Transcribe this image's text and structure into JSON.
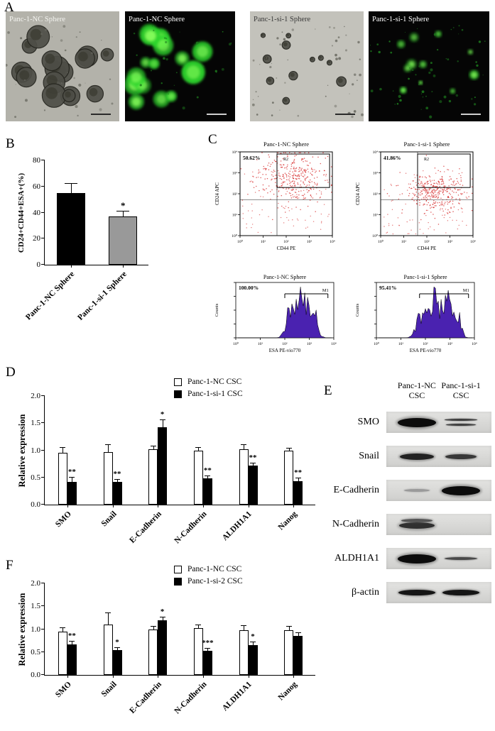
{
  "panels": {
    "a": "A",
    "b": "B",
    "c": "C",
    "d": "D",
    "e": "E",
    "f": "F"
  },
  "panel_a": {
    "images": [
      {
        "label": "Panc-1-NC Sphere",
        "mode": "brightfield",
        "density": "high"
      },
      {
        "label": "Panc-1-NC Sphere",
        "mode": "fluorescence",
        "density": "high"
      },
      {
        "label": "Panc-1-si-1 Sphere",
        "mode": "brightfield",
        "density": "low"
      },
      {
        "label": "Panc-1-si-1 Sphere",
        "mode": "fluorescence",
        "density": "low"
      }
    ]
  },
  "chart_data": [
    {
      "id": "panel_b",
      "type": "bar",
      "ylabel": "CD24+CD44+ESA+(%)",
      "ylim": [
        0,
        80
      ],
      "yticks": [
        "0",
        "20",
        "40",
        "60",
        "80"
      ],
      "categories": [
        "Panc-1-NC Sphere",
        "Panc-1-si-1 Sphere"
      ],
      "values": [
        55,
        37
      ],
      "errors": [
        7,
        4
      ],
      "significance": [
        "",
        "*"
      ],
      "bar_colors": [
        "#000000",
        "#999999"
      ],
      "grid": false
    },
    {
      "id": "panel_d",
      "type": "bar",
      "ylabel": "Relative expression",
      "ylim": [
        0,
        2
      ],
      "yticks": [
        "0.0",
        "0.5",
        "1.0",
        "1.5",
        "2.0"
      ],
      "categories": [
        "SMO",
        "Snail",
        "E-Cadherin",
        "N-Cadherin",
        "ALDH1A1",
        "Nanog"
      ],
      "series": [
        {
          "name": "Panc-1-NC CSC",
          "color": "#ffffff",
          "values": [
            0.95,
            0.97,
            1.02,
            1.0,
            1.02,
            1.0
          ],
          "errors": [
            0.1,
            0.13,
            0.05,
            0.04,
            0.08,
            0.03
          ],
          "significance": [
            "",
            "",
            "",
            "",
            "",
            ""
          ]
        },
        {
          "name": "Panc-1-si-1 CSC",
          "color": "#000000",
          "values": [
            0.42,
            0.42,
            1.43,
            0.48,
            0.72,
            0.43
          ],
          "errors": [
            0.08,
            0.04,
            0.12,
            0.04,
            0.04,
            0.05
          ],
          "significance": [
            "**",
            "**",
            "*",
            "**",
            "**",
            "**"
          ]
        }
      ],
      "legend_position": "top-right",
      "grid": false
    },
    {
      "id": "panel_f",
      "type": "bar",
      "ylabel": "Relative expression",
      "ylim": [
        0,
        2
      ],
      "yticks": [
        "0.0",
        "0.5",
        "1.0",
        "1.5",
        "2.0"
      ],
      "categories": [
        "SMO",
        "Snail",
        "E-Cadherin",
        "N-Cadherin",
        "ALDH1A1",
        "Nanog"
      ],
      "series": [
        {
          "name": "Panc-1-NC CSC",
          "color": "#ffffff",
          "values": [
            0.95,
            1.1,
            1.0,
            1.02,
            0.97,
            0.98
          ],
          "errors": [
            0.07,
            0.25,
            0.05,
            0.06,
            0.1,
            0.08
          ],
          "significance": [
            "",
            "",
            "",
            "",
            "",
            ""
          ]
        },
        {
          "name": "Panc-1-si-2 CSC",
          "color": "#000000",
          "values": [
            0.67,
            0.54,
            1.2,
            0.53,
            0.65,
            0.85
          ],
          "errors": [
            0.06,
            0.05,
            0.06,
            0.05,
            0.07,
            0.06
          ],
          "significance": [
            "**",
            "*",
            "*",
            "***",
            "*",
            ""
          ]
        }
      ],
      "legend_position": "top-right",
      "grid": false
    }
  ],
  "panel_c": {
    "ticks": [
      "10⁰",
      "10¹",
      "10²",
      "10³",
      "10⁴"
    ],
    "scatter": [
      {
        "title": "Panc-1-NC Sphere",
        "percent": "50.62%",
        "gate": "R2",
        "xlabel": "CD44 PE",
        "ylabel": "CD24 APC"
      },
      {
        "title": "Panc-1-si-1 Sphere",
        "percent": "41.86%",
        "gate": "R2",
        "xlabel": "CD44 PE",
        "ylabel": "CD24 APC"
      }
    ],
    "histograms": [
      {
        "title": "Panc-1-NC Sphere",
        "percent": "100.00%",
        "marker": "M1",
        "xlabel": "ESA PE-vio770",
        "ylabel": "Counts"
      },
      {
        "title": "Panc-1-si-1 Sphere",
        "percent": "95.41%",
        "marker": "M1",
        "xlabel": "ESA PE-vio770",
        "ylabel": "Counts"
      }
    ],
    "dot_color": "#d42020",
    "hist_color": "#4a22b0"
  },
  "panel_e": {
    "lane_headers": [
      "Panc-1-NC CSC",
      "Panc-1-si-1 CSC"
    ],
    "rows": [
      {
        "protein": "SMO",
        "bands": [
          "strong",
          "double"
        ]
      },
      {
        "protein": "Snail",
        "bands": [
          "medium",
          "medium-weak"
        ]
      },
      {
        "protein": "E-Cadherin",
        "bands": [
          "faint",
          "strong"
        ]
      },
      {
        "protein": "N-Cadherin",
        "bands": [
          "smear",
          "none"
        ]
      },
      {
        "protein": "ALDH1A1",
        "bands": [
          "strong",
          "weak"
        ]
      },
      {
        "protein": "β-actin",
        "bands": [
          "strong-thin",
          "strong-thin"
        ]
      }
    ]
  }
}
